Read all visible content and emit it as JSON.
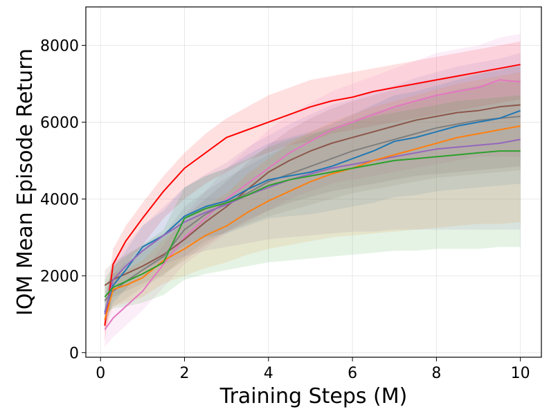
{
  "chart_data": {
    "type": "line",
    "title": "",
    "xlabel": "Training Steps (M)",
    "ylabel": "IQM Mean Episode Return",
    "xlim": [
      -0.35,
      10.5
    ],
    "ylim": [
      -120,
      9000
    ],
    "xticks": [
      0,
      2,
      4,
      6,
      8,
      10
    ],
    "yticks": [
      0,
      2000,
      4000,
      6000,
      8000
    ],
    "grid": true,
    "legend": "none",
    "x": [
      0.1,
      0.3,
      0.6,
      1.0,
      1.5,
      2.0,
      2.5,
      3.0,
      3.5,
      4.0,
      4.5,
      5.0,
      5.5,
      6.0,
      6.5,
      7.0,
      7.5,
      8.0,
      8.5,
      9.0,
      9.5,
      10.0
    ],
    "series": [
      {
        "name": "series-red",
        "color": "#ff0000",
        "values": [
          700,
          2300,
          2900,
          3500,
          4200,
          4800,
          5200,
          5600,
          5800,
          6000,
          6200,
          6400,
          6550,
          6650,
          6800,
          6900,
          7000,
          7100,
          7200,
          7300,
          7400,
          7500
        ],
        "lower": [
          300,
          1700,
          2300,
          2800,
          3500,
          4000,
          4400,
          4700,
          5000,
          5200,
          5400,
          5500,
          5700,
          5800,
          5900,
          6000,
          6100,
          6200,
          6300,
          6400,
          6500,
          6600
        ],
        "upper": [
          1100,
          2700,
          3300,
          3900,
          4600,
          5200,
          5700,
          6100,
          6400,
          6700,
          6900,
          7100,
          7200,
          7300,
          7400,
          7500,
          7600,
          7700,
          7800,
          7900,
          8000,
          8100
        ]
      },
      {
        "name": "series-pink",
        "color": "#e377c2",
        "values": [
          600,
          900,
          1200,
          1600,
          2300,
          3000,
          3500,
          4000,
          4400,
          4800,
          5200,
          5500,
          5800,
          6000,
          6200,
          6400,
          6550,
          6700,
          6800,
          6900,
          7100,
          7050
        ],
        "lower": [
          150,
          400,
          700,
          1100,
          1700,
          2300,
          2700,
          3100,
          3400,
          3700,
          4000,
          4200,
          4400,
          4500,
          4600,
          4700,
          4800,
          4900,
          5000,
          5100,
          5100,
          5100
        ],
        "upper": [
          1000,
          1400,
          1700,
          2100,
          2800,
          3600,
          4200,
          4800,
          5300,
          5800,
          6200,
          6500,
          6800,
          7000,
          7200,
          7400,
          7600,
          7800,
          7900,
          8000,
          8200,
          8300
        ]
      },
      {
        "name": "series-brown",
        "color": "#8c564b",
        "values": [
          1750,
          1900,
          2050,
          2250,
          2550,
          2950,
          3400,
          3800,
          4250,
          4700,
          5000,
          5250,
          5450,
          5600,
          5750,
          5900,
          6050,
          6150,
          6250,
          6300,
          6400,
          6450
        ],
        "lower": [
          1300,
          1450,
          1600,
          1800,
          2050,
          2400,
          2800,
          3150,
          3450,
          3700,
          3900,
          4050,
          4200,
          4300,
          4400,
          4500,
          4600,
          4650,
          4700,
          4750,
          4800,
          4850
        ],
        "upper": [
          2150,
          2350,
          2550,
          2800,
          3100,
          3550,
          4000,
          4450,
          4950,
          5400,
          5800,
          6100,
          6350,
          6550,
          6700,
          6850,
          7000,
          7100,
          7200,
          7300,
          7400,
          7450
        ]
      },
      {
        "name": "series-gray",
        "color": "#7f7f7f",
        "values": [
          1350,
          1600,
          1850,
          2150,
          2500,
          3200,
          3600,
          3900,
          4150,
          4450,
          4650,
          4850,
          5050,
          5250,
          5400,
          5550,
          5700,
          5850,
          5950,
          6050,
          6100,
          6150
        ],
        "lower": [
          950,
          1200,
          1400,
          1700,
          2000,
          2500,
          2900,
          3150,
          3350,
          3550,
          3700,
          3850,
          4000,
          4150,
          4250,
          4350,
          4450,
          4550,
          4600,
          4650,
          4700,
          4750
        ],
        "upper": [
          1750,
          2050,
          2350,
          2650,
          3050,
          3800,
          4200,
          4550,
          4850,
          5150,
          5400,
          5650,
          5850,
          6050,
          6250,
          6400,
          6550,
          6700,
          6850,
          6950,
          7050,
          7100
        ]
      },
      {
        "name": "series-blue",
        "color": "#1f77b4",
        "values": [
          1050,
          1750,
          2150,
          2750,
          3050,
          3550,
          3800,
          3950,
          4250,
          4500,
          4600,
          4700,
          4850,
          5050,
          5250,
          5500,
          5600,
          5750,
          5900,
          6000,
          6100,
          6300
        ],
        "lower": [
          700,
          1300,
          1650,
          2150,
          2400,
          2800,
          3000,
          3100,
          3300,
          3500,
          3550,
          3600,
          3700,
          3800,
          3900,
          4050,
          4100,
          4200,
          4250,
          4300,
          4350,
          4400
        ],
        "upper": [
          1400,
          2200,
          2650,
          3300,
          3700,
          4300,
          4600,
          4800,
          5150,
          5450,
          5600,
          5750,
          5950,
          6200,
          6450,
          6700,
          6800,
          6950,
          7100,
          7250,
          7350,
          7500
        ]
      },
      {
        "name": "series-purple",
        "color": "#9467bd",
        "values": [
          1000,
          1900,
          2250,
          2650,
          3050,
          3400,
          3650,
          3850,
          4100,
          4300,
          4500,
          4650,
          4800,
          4900,
          5000,
          5100,
          5200,
          5300,
          5350,
          5400,
          5450,
          5550
        ],
        "lower": [
          650,
          1400,
          1700,
          2000,
          2300,
          2500,
          2650,
          2750,
          2850,
          2950,
          3000,
          3050,
          3100,
          3150,
          3150,
          3200,
          3200,
          3200,
          3200,
          3200,
          3200,
          3200
        ],
        "upper": [
          1350,
          2400,
          2800,
          3300,
          3800,
          4300,
          4650,
          4950,
          5350,
          5650,
          5950,
          6200,
          6450,
          6600,
          6800,
          6950,
          7150,
          7300,
          7450,
          7550,
          7650,
          7800
        ]
      },
      {
        "name": "series-orange",
        "color": "#ff7f0e",
        "values": [
          850,
          1650,
          1750,
          1950,
          2400,
          2700,
          3050,
          3300,
          3650,
          3950,
          4200,
          4450,
          4650,
          4800,
          5000,
          5150,
          5300,
          5450,
          5600,
          5700,
          5800,
          5900
        ],
        "lower": [
          550,
          1200,
          1300,
          1450,
          1800,
          2000,
          2200,
          2350,
          2550,
          2700,
          2800,
          2900,
          3000,
          3050,
          3100,
          3150,
          3200,
          3250,
          3300,
          3350,
          3350,
          3400
        ],
        "upper": [
          1150,
          2050,
          2150,
          2400,
          2950,
          3350,
          3800,
          4150,
          4650,
          5050,
          5450,
          5750,
          6000,
          6200,
          6400,
          6550,
          6700,
          6850,
          7000,
          7100,
          7200,
          7300
        ]
      },
      {
        "name": "series-green",
        "color": "#2ca02c",
        "values": [
          1450,
          1700,
          1850,
          2050,
          2350,
          3500,
          3750,
          3900,
          4100,
          4350,
          4500,
          4600,
          4700,
          4800,
          4900,
          5000,
          5050,
          5100,
          5150,
          5200,
          5250,
          5250
        ],
        "lower": [
          1000,
          1150,
          1200,
          1300,
          1500,
          1900,
          2050,
          2150,
          2250,
          2350,
          2400,
          2450,
          2500,
          2550,
          2600,
          2650,
          2650,
          2700,
          2700,
          2700,
          2750,
          2750
        ],
        "upper": [
          1900,
          2250,
          2500,
          2800,
          3200,
          4300,
          4600,
          4800,
          5050,
          5350,
          5550,
          5700,
          5850,
          6000,
          6150,
          6250,
          6350,
          6450,
          6550,
          6600,
          6650,
          6700
        ]
      }
    ]
  }
}
